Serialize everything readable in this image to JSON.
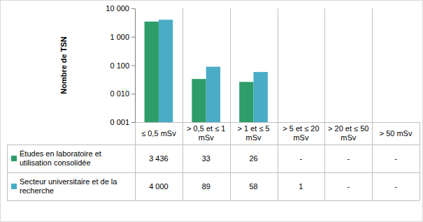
{
  "chart_data": {
    "type": "bar",
    "y_label": "Nombre de TSN",
    "categories": [
      "≤ 0,5 mSv",
      "> 0,5 et ≤ 1 mSv",
      "> 1 et ≤ 5 mSv",
      "> 5 et ≤ 20 mSv",
      "> 20 et ≤ 50 mSv",
      "> 50 mSv"
    ],
    "series": [
      {
        "name": "Études en laboratoire et utilisation consolidée",
        "color": "#2f9d69",
        "values": [
          3436,
          33,
          26,
          null,
          null,
          null
        ],
        "value_labels": [
          "3 436",
          "33",
          "26",
          "-",
          "-",
          "-"
        ]
      },
      {
        "name": "Secteur universitaire et de la recherche",
        "color": "#4bacc6",
        "values": [
          4000,
          89,
          58,
          1,
          null,
          null
        ],
        "value_labels": [
          "4 000",
          "89",
          "58",
          "1",
          "-",
          "-"
        ]
      }
    ],
    "log": "y",
    "grid": false,
    "ylim": [
      1,
      10000
    ],
    "yticks": [
      {
        "value": 1,
        "label": "0 001"
      },
      {
        "value": 10,
        "label": "0 010"
      },
      {
        "value": 100,
        "label": "0 100"
      },
      {
        "value": 1000,
        "label": "1 000"
      },
      {
        "value": 10000,
        "label": "10 000"
      }
    ]
  }
}
